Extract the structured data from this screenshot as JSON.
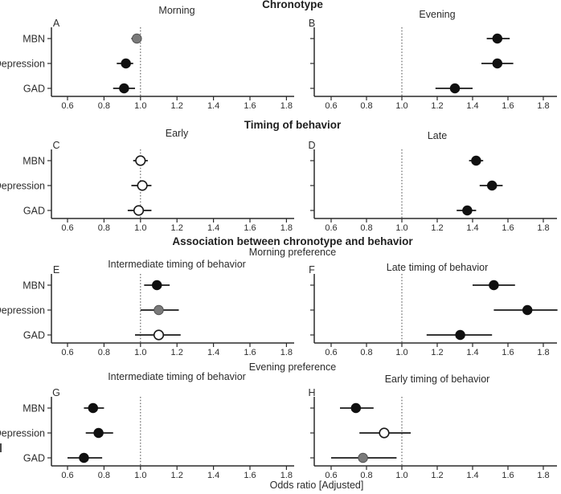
{
  "figure": {
    "xlabel": "Odds ratio [Adjusted]",
    "section1_title": "Chronotype",
    "section2_title": "Timing of behavior",
    "section3_title": "Association between chronotype and behavior",
    "section3_subtitle": "Morning preference",
    "section4_subtitle": "Evening preference",
    "categories": [
      "MBN",
      "Depression",
      "GAD"
    ],
    "colors": {
      "point_black": "#101010",
      "point_gray": "#7a7a7a",
      "point_white": "#ffffff",
      "axis": "#2a2a2a",
      "refline": "#555555"
    }
  },
  "chart_data": [
    {
      "type": "forest",
      "panel": "A",
      "title": "Morning",
      "categories": [
        "MBN",
        "Depression",
        "GAD"
      ],
      "xticks": [
        0.6,
        0.8,
        1.0,
        1.2,
        1.4,
        1.6,
        1.8
      ],
      "refline": 1.0,
      "xlim": [
        0.55,
        1.9
      ],
      "series": [
        {
          "label": "MBN",
          "or": 0.98,
          "ci": [
            0.95,
            1.0
          ],
          "fill": "gray"
        },
        {
          "label": "Depression",
          "or": 0.92,
          "ci": [
            0.87,
            0.96
          ],
          "fill": "black"
        },
        {
          "label": "GAD",
          "or": 0.91,
          "ci": [
            0.85,
            0.97
          ],
          "fill": "black"
        }
      ]
    },
    {
      "type": "forest",
      "panel": "B",
      "title": "Evening",
      "categories": [
        "MBN",
        "Depression",
        "GAD"
      ],
      "xticks": [
        0.6,
        0.8,
        1.0,
        1.2,
        1.4,
        1.6,
        1.8
      ],
      "refline": 1.0,
      "xlim": [
        0.55,
        1.9
      ],
      "series": [
        {
          "label": "MBN",
          "or": 1.54,
          "ci": [
            1.48,
            1.61
          ],
          "fill": "black"
        },
        {
          "label": "Depression",
          "or": 1.54,
          "ci": [
            1.45,
            1.63
          ],
          "fill": "black"
        },
        {
          "label": "GAD",
          "or": 1.3,
          "ci": [
            1.19,
            1.4
          ],
          "fill": "black"
        }
      ]
    },
    {
      "type": "forest",
      "panel": "C",
      "title": "Early",
      "categories": [
        "MBN",
        "Depression",
        "GAD"
      ],
      "xticks": [
        0.6,
        0.8,
        1.0,
        1.2,
        1.4,
        1.6,
        1.8
      ],
      "refline": 1.0,
      "xlim": [
        0.55,
        1.9
      ],
      "series": [
        {
          "label": "MBN",
          "or": 1.0,
          "ci": [
            0.96,
            1.04
          ],
          "fill": "white"
        },
        {
          "label": "Depression",
          "or": 1.01,
          "ci": [
            0.95,
            1.06
          ],
          "fill": "white"
        },
        {
          "label": "GAD",
          "or": 0.99,
          "ci": [
            0.93,
            1.06
          ],
          "fill": "white"
        }
      ]
    },
    {
      "type": "forest",
      "panel": "D",
      "title": "Late",
      "categories": [
        "MBN",
        "Depression",
        "GAD"
      ],
      "xticks": [
        0.6,
        0.8,
        1.0,
        1.2,
        1.4,
        1.6,
        1.8
      ],
      "refline": 1.0,
      "xlim": [
        0.55,
        1.9
      ],
      "series": [
        {
          "label": "MBN",
          "or": 1.42,
          "ci": [
            1.38,
            1.46
          ],
          "fill": "black"
        },
        {
          "label": "Depression",
          "or": 1.51,
          "ci": [
            1.44,
            1.57
          ],
          "fill": "black"
        },
        {
          "label": "GAD",
          "or": 1.37,
          "ci": [
            1.31,
            1.42
          ],
          "fill": "black"
        }
      ]
    },
    {
      "type": "forest",
      "panel": "E",
      "title": "Intermediate timing of behavior",
      "categories": [
        "MBN",
        "Depression",
        "GAD"
      ],
      "xticks": [
        0.6,
        0.8,
        1.0,
        1.2,
        1.4,
        1.6,
        1.8
      ],
      "refline": 1.0,
      "xlim": [
        0.55,
        1.9
      ],
      "series": [
        {
          "label": "MBN",
          "or": 1.09,
          "ci": [
            1.02,
            1.16
          ],
          "fill": "black"
        },
        {
          "label": "Depression",
          "or": 1.1,
          "ci": [
            1.0,
            1.21
          ],
          "fill": "gray"
        },
        {
          "label": "GAD",
          "or": 1.1,
          "ci": [
            0.97,
            1.22
          ],
          "fill": "white"
        }
      ]
    },
    {
      "type": "forest",
      "panel": "F",
      "title": "Late timing of behavior",
      "categories": [
        "MBN",
        "Depression",
        "GAD"
      ],
      "xticks": [
        0.6,
        0.8,
        1.0,
        1.2,
        1.4,
        1.6,
        1.8
      ],
      "refline": 1.0,
      "xlim": [
        0.55,
        1.9
      ],
      "series": [
        {
          "label": "MBN",
          "or": 1.52,
          "ci": [
            1.4,
            1.64
          ],
          "fill": "black"
        },
        {
          "label": "Depression",
          "or": 1.71,
          "ci": [
            1.52,
            1.88
          ],
          "fill": "black"
        },
        {
          "label": "GAD",
          "or": 1.33,
          "ci": [
            1.14,
            1.51
          ],
          "fill": "black"
        }
      ]
    },
    {
      "type": "forest",
      "panel": "G",
      "title": "Intermediate timing of behavior",
      "categories": [
        "MBN",
        "Depression",
        "GAD"
      ],
      "xticks": [
        0.6,
        0.8,
        1.0,
        1.2,
        1.4,
        1.6,
        1.8
      ],
      "refline": 1.0,
      "xlim": [
        0.55,
        1.9
      ],
      "series": [
        {
          "label": "MBN",
          "or": 0.74,
          "ci": [
            0.69,
            0.8
          ],
          "fill": "black"
        },
        {
          "label": "Depression",
          "or": 0.77,
          "ci": [
            0.7,
            0.85
          ],
          "fill": "black"
        },
        {
          "label": "GAD",
          "or": 0.69,
          "ci": [
            0.6,
            0.79
          ],
          "fill": "black"
        }
      ]
    },
    {
      "type": "forest",
      "panel": "H",
      "title": "Early timing of behavior",
      "categories": [
        "MBN",
        "Depression",
        "GAD"
      ],
      "xticks": [
        0.6,
        0.8,
        1.0,
        1.2,
        1.4,
        1.6,
        1.8
      ],
      "refline": 1.0,
      "xlim": [
        0.55,
        1.9
      ],
      "series": [
        {
          "label": "MBN",
          "or": 0.74,
          "ci": [
            0.65,
            0.84
          ],
          "fill": "black"
        },
        {
          "label": "Depression",
          "or": 0.9,
          "ci": [
            0.76,
            1.05
          ],
          "fill": "white"
        },
        {
          "label": "GAD",
          "or": 0.78,
          "ci": [
            0.6,
            0.97
          ],
          "fill": "gray"
        }
      ]
    }
  ]
}
